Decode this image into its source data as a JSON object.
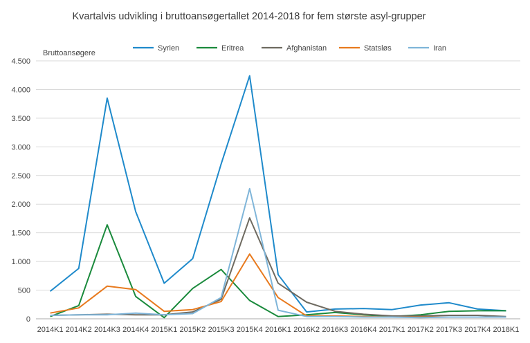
{
  "chart_data": {
    "type": "line",
    "title": "Kvartalvis udvikling i bruttoansøgertallet 2014-2018 for fem største asyl-grupper",
    "ylabel": "Bruttoansøgere",
    "xlabel": "",
    "ylim": [
      0,
      4500
    ],
    "yticks": [
      0,
      500,
      1000,
      1500,
      2000,
      2500,
      3000,
      3500,
      4000,
      4500
    ],
    "ytick_labels": [
      "0",
      "500",
      "1.000",
      "1.500",
      "2.000",
      "2.500",
      "3.000",
      "3.500",
      "4.000",
      "4.500"
    ],
    "grid": true,
    "legend_position": "top",
    "categories": [
      "2014K1",
      "2014K2",
      "2014K3",
      "2014K4",
      "2015K1",
      "2015K2",
      "2015K3",
      "2015K4",
      "2016K1",
      "2016K2",
      "2016K3",
      "2016K4",
      "2017K1",
      "2017K2",
      "2017K3",
      "2017K4",
      "2018K1"
    ],
    "series": [
      {
        "name": "Syrien",
        "color": "#1F8ACB",
        "values": [
          480,
          880,
          3850,
          1870,
          620,
          1050,
          2700,
          4240,
          770,
          120,
          170,
          180,
          160,
          240,
          280,
          170,
          140
        ]
      },
      {
        "name": "Eritrea",
        "color": "#1A8A3C",
        "values": [
          40,
          230,
          1640,
          390,
          20,
          530,
          860,
          320,
          40,
          70,
          110,
          70,
          40,
          70,
          130,
          140,
          140
        ]
      },
      {
        "name": "Afghanistan",
        "color": "#6E6A60",
        "values": [
          60,
          70,
          80,
          70,
          70,
          120,
          340,
          1760,
          620,
          290,
          130,
          80,
          50,
          50,
          60,
          60,
          40
        ]
      },
      {
        "name": "Statsløs",
        "color": "#E87A1E",
        "values": [
          100,
          190,
          570,
          510,
          130,
          160,
          300,
          1130,
          370,
          50,
          50,
          40,
          30,
          30,
          30,
          30,
          30
        ]
      },
      {
        "name": "Iran",
        "color": "#7FB5D9",
        "values": [
          60,
          70,
          70,
          100,
          70,
          90,
          370,
          2270,
          150,
          40,
          40,
          30,
          30,
          20,
          30,
          30,
          30
        ]
      }
    ]
  }
}
